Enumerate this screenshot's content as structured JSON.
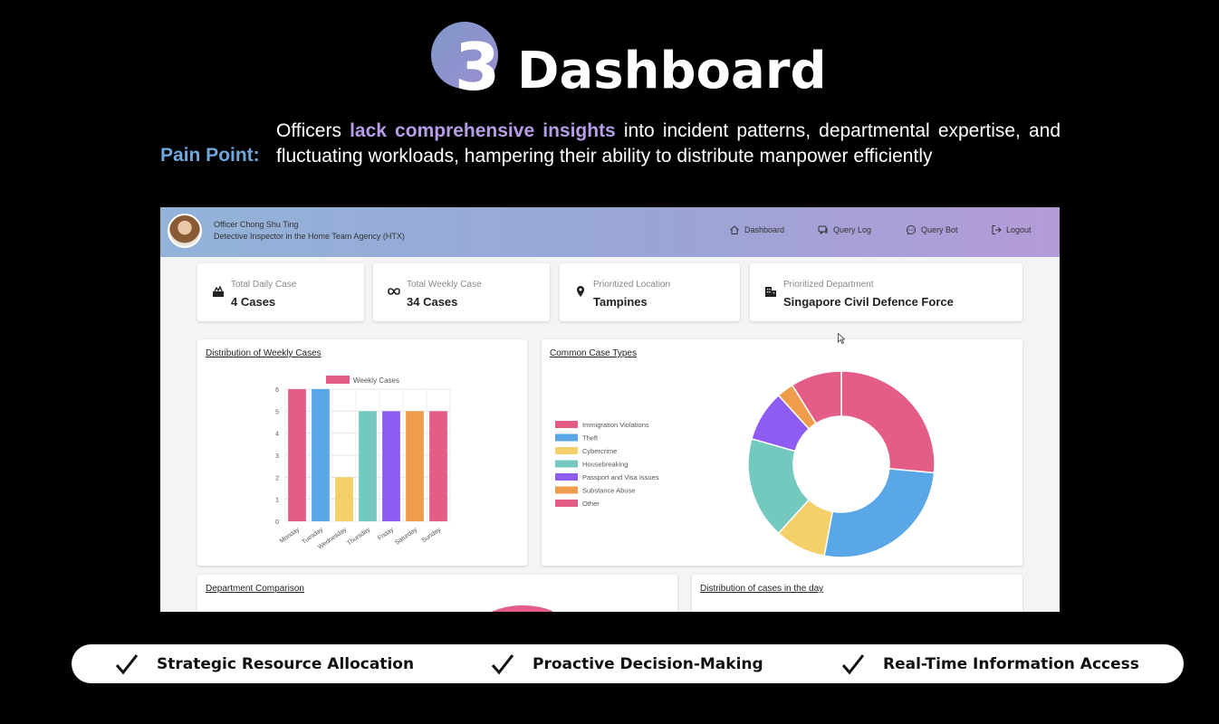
{
  "slide": {
    "step_number": "3",
    "title": "Dashboard",
    "pain_label": "Pain Point:",
    "pain_text_before": "Officers ",
    "pain_text_highlight": "lack comprehensive insights",
    "pain_text_after": " into incident patterns, departmental expertise, and fluctuating workloads, hampering their ability to distribute manpower efficiently"
  },
  "app": {
    "user": {
      "name": "Officer Chong Shu Ting",
      "role": "Detective Inspector in the Home Team Agency (HTX)"
    },
    "nav": [
      {
        "label": "Dashboard",
        "icon": "home-icon"
      },
      {
        "label": "Query Log",
        "icon": "chat-bubbles-icon"
      },
      {
        "label": "Query Bot",
        "icon": "chat-bubble-icon"
      },
      {
        "label": "Logout",
        "icon": "logout-icon"
      }
    ],
    "kpis": [
      {
        "label": "Total Daily Case",
        "value": "4 Cases",
        "icon": "cases-icon"
      },
      {
        "label": "Total Weekly Case",
        "value": "34 Cases",
        "icon": "infinity-icon"
      },
      {
        "label": "Prioritized Location",
        "value": "Tampines",
        "icon": "location-pin-icon"
      },
      {
        "label": "Prioritized Department",
        "value": "Singapore Civil Defence Force",
        "icon": "building-icon"
      }
    ],
    "panels": {
      "weekly": "Distribution of Weekly Cases",
      "types": "Common Case Types",
      "department": "Department Comparison",
      "daily": "Distribution of cases in the day"
    }
  },
  "chart_data": [
    {
      "type": "bar",
      "title": "Distribution of Weekly Cases",
      "categories": [
        "Monday",
        "Tuesday",
        "Wednesday",
        "Thursday",
        "Friday",
        "Saturday",
        "Sunday"
      ],
      "series": [
        {
          "name": "Weekly Cases",
          "values": [
            6,
            6,
            2,
            5,
            5,
            5,
            5
          ]
        }
      ],
      "bar_colors": [
        "#e35d87",
        "#5aa7e8",
        "#f4cf6a",
        "#74c9bf",
        "#8e5cf2",
        "#ef9d4c",
        "#e35d87"
      ],
      "yticks": [
        "0",
        "1",
        "2",
        "3",
        "4",
        "5",
        "6"
      ],
      "ylim": [
        0,
        6
      ],
      "grid": true,
      "legend": "top"
    },
    {
      "type": "pie",
      "title": "Common Case Types",
      "labels": [
        "Immigration Violations",
        "Theft",
        "Cybercrime",
        "Housebreaking",
        "Passport and Visa Issues",
        "Substance Abuse",
        "Other"
      ],
      "values": [
        9,
        9,
        3,
        6,
        3,
        1,
        3
      ],
      "colors": [
        "#e35d87",
        "#5aa7e8",
        "#f4cf6a",
        "#74c9bf",
        "#8e5cf2",
        "#ef9d4c",
        "#e35d87"
      ],
      "legend": "left"
    }
  ],
  "benefits": [
    "Strategic Resource Allocation",
    "Proactive Decision-Making",
    "Real-Time Information Access"
  ]
}
